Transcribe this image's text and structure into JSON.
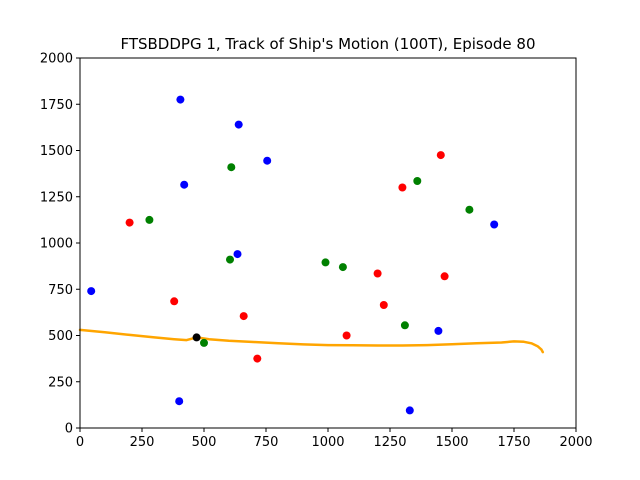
{
  "chart_data": {
    "type": "scatter",
    "title": "FTSBDDPG 1, Track of Ship's Motion (100T), Episode 80",
    "xlabel": "",
    "ylabel": "",
    "xlim": [
      0,
      2000
    ],
    "ylim": [
      0,
      2000
    ],
    "xticks": [
      0,
      250,
      500,
      750,
      1000,
      1250,
      1500,
      1750,
      2000
    ],
    "yticks": [
      0,
      250,
      500,
      750,
      1000,
      1250,
      1500,
      1750,
      2000
    ],
    "xtick_labels": [
      "0",
      "250",
      "500",
      "750",
      "1000",
      "1250",
      "1500",
      "1750",
      "2000"
    ],
    "ytick_labels": [
      "0",
      "250",
      "500",
      "750",
      "1000",
      "1250",
      "1500",
      "1750",
      "2000"
    ],
    "grid": false,
    "series": [
      {
        "kind": "line",
        "color": "#ffa500",
        "points": [
          [
            0,
            530
          ],
          [
            100,
            518
          ],
          [
            200,
            503
          ],
          [
            300,
            490
          ],
          [
            380,
            480
          ],
          [
            430,
            475
          ],
          [
            470,
            490
          ],
          [
            520,
            480
          ],
          [
            600,
            472
          ],
          [
            700,
            465
          ],
          [
            800,
            458
          ],
          [
            900,
            452
          ],
          [
            1000,
            448
          ],
          [
            1100,
            447
          ],
          [
            1200,
            446
          ],
          [
            1300,
            446
          ],
          [
            1400,
            448
          ],
          [
            1500,
            453
          ],
          [
            1600,
            458
          ],
          [
            1700,
            462
          ],
          [
            1750,
            468
          ],
          [
            1790,
            466
          ],
          [
            1820,
            458
          ],
          [
            1845,
            442
          ],
          [
            1860,
            425
          ],
          [
            1866,
            410
          ]
        ]
      },
      {
        "kind": "points",
        "color": "#0000ff",
        "points": [
          [
            45,
            740
          ],
          [
            405,
            1775
          ],
          [
            420,
            1315
          ],
          [
            400,
            145
          ],
          [
            640,
            1640
          ],
          [
            635,
            940
          ],
          [
            755,
            1445
          ],
          [
            1445,
            525
          ],
          [
            1330,
            95
          ],
          [
            1670,
            1100
          ]
        ]
      },
      {
        "kind": "points",
        "color": "#008000",
        "points": [
          [
            280,
            1125
          ],
          [
            610,
            1410
          ],
          [
            605,
            910
          ],
          [
            500,
            460
          ],
          [
            990,
            895
          ],
          [
            1060,
            870
          ],
          [
            1360,
            1335
          ],
          [
            1570,
            1180
          ],
          [
            1310,
            555
          ]
        ]
      },
      {
        "kind": "points",
        "color": "#ff0000",
        "points": [
          [
            200,
            1110
          ],
          [
            380,
            685
          ],
          [
            660,
            605
          ],
          [
            715,
            375
          ],
          [
            1075,
            500
          ],
          [
            1200,
            835
          ],
          [
            1225,
            665
          ],
          [
            1300,
            1300
          ],
          [
            1455,
            1475
          ],
          [
            1470,
            820
          ]
        ]
      },
      {
        "kind": "points",
        "color": "#000000",
        "points": [
          [
            470,
            490
          ]
        ]
      }
    ]
  }
}
